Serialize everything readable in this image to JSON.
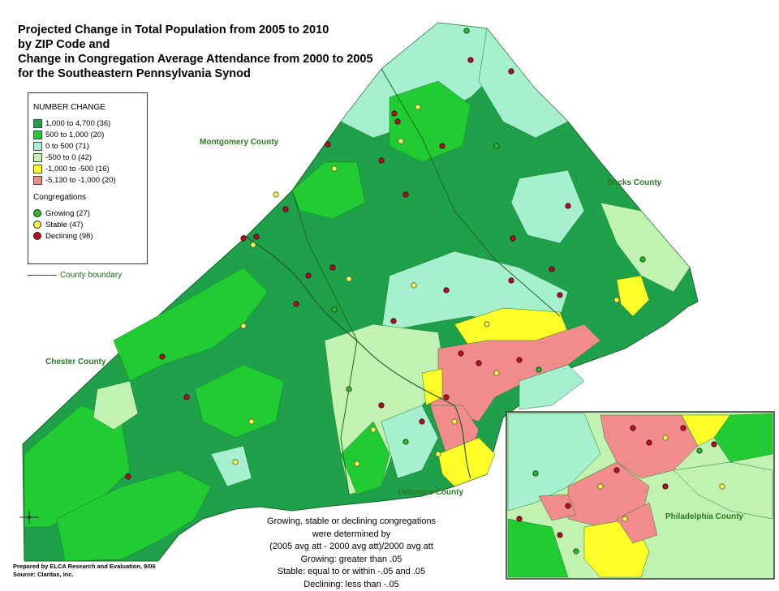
{
  "title_lines": [
    "Projected Change in Total Population from 2005 to 2010",
    "by ZIP Code and",
    "Change in Congregation Average Attendance from 2000 to 2005",
    "for the Southeastern Pennsylvania Synod"
  ],
  "legend": {
    "header": "NUMBER CHANGE",
    "classes": [
      {
        "label": "1,000 to  4,700  (36)",
        "color": "#1fa04a"
      },
      {
        "label": "500 to  1,000  (20)",
        "color": "#20cc32"
      },
      {
        "label": "0 to     500  (71)",
        "color": "#a6f0cf"
      },
      {
        "label": "-500 to       0  (42)",
        "color": "#c2f2b2"
      },
      {
        "label": "-1,000 to    -500  (16)",
        "color": "#ffff2a"
      },
      {
        "label": "-5,130 to -1,000  (20)",
        "color": "#f28c8c"
      }
    ],
    "congregations_header": "Congregations",
    "congregations": [
      {
        "label": "Growing   (27)",
        "color": "#2eb82e"
      },
      {
        "label": "Stable     (47)",
        "color": "#f5f546"
      },
      {
        "label": "Declining  (98)",
        "color": "#b0102a"
      }
    ]
  },
  "boundary_label": "County boundary",
  "counties": {
    "montgomery": "Montgomery County",
    "bucks": "Bucks County",
    "chester": "Chester County",
    "delaware": "Delaware County",
    "philadelphia": "Philadelphia County"
  },
  "notes": [
    "Growing, stable or declining congregations",
    "were determined by",
    "(2005 avg att - 2000 avg att)/2000 avg att",
    "Growing: greater than .05",
    "Stable: equal to or within -.05 and .05",
    "Declining: less than -.05"
  ],
  "credit": [
    "Prepared by ELCA Research and Evaluation, 9/06",
    "Source: Claritas, Inc."
  ],
  "compass": "N"
}
